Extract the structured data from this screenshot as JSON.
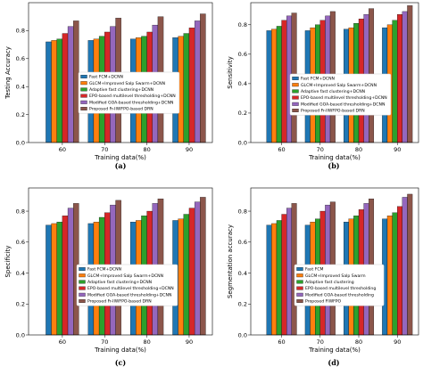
{
  "colors": [
    "#1f77b4",
    "#ff7f0e",
    "#2ca02c",
    "#d62728",
    "#9467bd",
    "#8c564b"
  ],
  "chart_data": [
    {
      "type": "bar",
      "panel_label": "(a)",
      "xlabel": "Training data(%)",
      "ylabel": "Testing Accuracy",
      "categories": [
        "60",
        "70",
        "80",
        "90"
      ],
      "ylim": [
        0,
        1.0
      ],
      "yticks": [
        "0.0",
        "0.2",
        "0.4",
        "0.6",
        "0.8"
      ],
      "series": [
        {
          "name": "Fast FCM+DCNN",
          "values": [
            0.72,
            0.73,
            0.74,
            0.75
          ]
        },
        {
          "name": "GLCM+Improved Salp Swarm+DCNN",
          "values": [
            0.73,
            0.74,
            0.75,
            0.76
          ]
        },
        {
          "name": "Adaptive fast clustering+DCNN",
          "values": [
            0.74,
            0.76,
            0.76,
            0.78
          ]
        },
        {
          "name": "EPO-based multilevel thresholding+DCNN",
          "values": [
            0.78,
            0.79,
            0.79,
            0.82
          ]
        },
        {
          "name": "Modified GOA-based thresholding+DCNN",
          "values": [
            0.83,
            0.83,
            0.84,
            0.87
          ]
        },
        {
          "name": "Proposed Fr-IIWFPO-based DRN",
          "values": [
            0.87,
            0.89,
            0.9,
            0.92
          ]
        }
      ]
    },
    {
      "type": "bar",
      "panel_label": "(b)",
      "xlabel": "Training data(%)",
      "ylabel": "Sensitivity",
      "categories": [
        "60",
        "70",
        "80",
        "90"
      ],
      "ylim": [
        0,
        0.95
      ],
      "yticks": [
        "0.0",
        "0.2",
        "0.4",
        "0.6",
        "0.8"
      ],
      "series": [
        {
          "name": "Fast FCM+DCNN",
          "values": [
            0.76,
            0.76,
            0.77,
            0.78
          ]
        },
        {
          "name": "GLCM+Improved Salp Swarm+DCNN",
          "values": [
            0.77,
            0.78,
            0.78,
            0.8
          ]
        },
        {
          "name": "Adaptive fast clustering+DCNN",
          "values": [
            0.79,
            0.8,
            0.81,
            0.83
          ]
        },
        {
          "name": "EPO-based multilevel thresholding+DCNN",
          "values": [
            0.83,
            0.83,
            0.84,
            0.87
          ]
        },
        {
          "name": "Modified GOA-based thresholding+DCNN",
          "values": [
            0.86,
            0.86,
            0.87,
            0.89
          ]
        },
        {
          "name": "Proposed Fr-IIWFPO-based DRN",
          "values": [
            0.88,
            0.89,
            0.91,
            0.93
          ]
        }
      ]
    },
    {
      "type": "bar",
      "panel_label": "(c)",
      "xlabel": "Training data(%)",
      "ylabel": "Specificity",
      "categories": [
        "60",
        "70",
        "80",
        "90"
      ],
      "ylim": [
        0,
        0.95
      ],
      "yticks": [
        "0.0",
        "0.2",
        "0.4",
        "0.6",
        "0.8"
      ],
      "series": [
        {
          "name": "Fast FCM+DCNN",
          "values": [
            0.71,
            0.72,
            0.73,
            0.74
          ]
        },
        {
          "name": "GLCM+Improved Salp Swarm+DCNN",
          "values": [
            0.72,
            0.73,
            0.74,
            0.75
          ]
        },
        {
          "name": "Adaptive fast clustering+DCNN",
          "values": [
            0.73,
            0.76,
            0.77,
            0.78
          ]
        },
        {
          "name": "EPO-based multilevel thresholding+DCNN",
          "values": [
            0.77,
            0.79,
            0.8,
            0.82
          ]
        },
        {
          "name": "Modified GOA-based thresholding+DCNN",
          "values": [
            0.82,
            0.84,
            0.85,
            0.86
          ]
        },
        {
          "name": "Proposed Fr-IIWFPO-based DRN",
          "values": [
            0.85,
            0.87,
            0.88,
            0.89
          ]
        }
      ]
    },
    {
      "type": "bar",
      "panel_label": "(d)",
      "xlabel": "Training data(%)",
      "ylabel": "Segmentation accuracy",
      "categories": [
        "60",
        "70",
        "80",
        "90"
      ],
      "ylim": [
        0,
        0.95
      ],
      "yticks": [
        "0.0",
        "0.2",
        "0.4",
        "0.6",
        "0.8"
      ],
      "series": [
        {
          "name": "Fast FCM",
          "values": [
            0.71,
            0.71,
            0.73,
            0.75
          ]
        },
        {
          "name": "GLCM+Improved Salp Swarm",
          "values": [
            0.72,
            0.73,
            0.75,
            0.77
          ]
        },
        {
          "name": "Adaptive fast clustering",
          "values": [
            0.74,
            0.75,
            0.77,
            0.79
          ]
        },
        {
          "name": "EPO-based multilevel thresholding",
          "values": [
            0.78,
            0.8,
            0.81,
            0.83
          ]
        },
        {
          "name": "Modified GOA-based thresholding",
          "values": [
            0.82,
            0.84,
            0.85,
            0.89
          ]
        },
        {
          "name": "Proposed FIWFPO",
          "values": [
            0.85,
            0.86,
            0.88,
            0.91
          ]
        }
      ]
    }
  ]
}
